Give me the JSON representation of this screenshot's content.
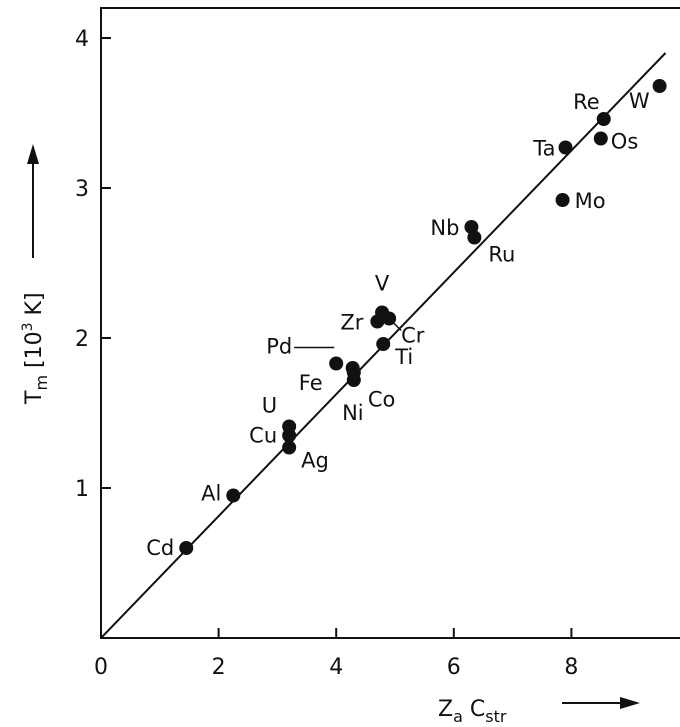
{
  "chart_data": {
    "type": "scatter",
    "title": "",
    "xlabel_base": "Z",
    "xlabel_sub1": "a",
    "xlabel_mid": " C",
    "xlabel_sub2": "str",
    "ylabel_base": "T",
    "ylabel_sub": "m",
    "ylabel_unit_open": " [10",
    "ylabel_unit_sup": "3",
    "ylabel_unit_close": " K]",
    "xlim": [
      0,
      9.6
    ],
    "ylim": [
      0,
      4.1
    ],
    "xticks": [
      0,
      2,
      4,
      6,
      8
    ],
    "yticks": [
      1,
      2,
      3,
      4
    ],
    "grid": false,
    "fit_line": {
      "x": [
        0,
        9.6
      ],
      "y": [
        0,
        3.9
      ]
    },
    "points": [
      {
        "label": "Cd",
        "x": 1.45,
        "y": 0.6
      },
      {
        "label": "Al",
        "x": 2.25,
        "y": 0.95
      },
      {
        "label": "Cu",
        "x": 3.2,
        "y": 1.35
      },
      {
        "label": "Ag",
        "x": 3.2,
        "y": 1.27
      },
      {
        "label": "U",
        "x": 3.2,
        "y": 1.41
      },
      {
        "label": "Pd",
        "x": 4.0,
        "y": 1.83
      },
      {
        "label": "Fe",
        "x": 4.28,
        "y": 1.8
      },
      {
        "label": "Co",
        "x": 4.3,
        "y": 1.77
      },
      {
        "label": "Ni",
        "x": 4.3,
        "y": 1.72
      },
      {
        "label": "Ti",
        "x": 4.8,
        "y": 1.96
      },
      {
        "label": "Zr",
        "x": 4.7,
        "y": 2.11
      },
      {
        "label": "V",
        "x": 4.78,
        "y": 2.17
      },
      {
        "label": "Cr",
        "x": 4.9,
        "y": 2.13
      },
      {
        "label": "Nb",
        "x": 6.3,
        "y": 2.74
      },
      {
        "label": "Ru",
        "x": 6.35,
        "y": 2.67
      },
      {
        "label": "Mo",
        "x": 7.85,
        "y": 2.92
      },
      {
        "label": "Ta",
        "x": 7.9,
        "y": 3.27
      },
      {
        "label": "Os",
        "x": 8.5,
        "y": 3.33
      },
      {
        "label": "Re",
        "x": 8.55,
        "y": 3.46
      },
      {
        "label": "W",
        "x": 9.5,
        "y": 3.68
      }
    ]
  }
}
